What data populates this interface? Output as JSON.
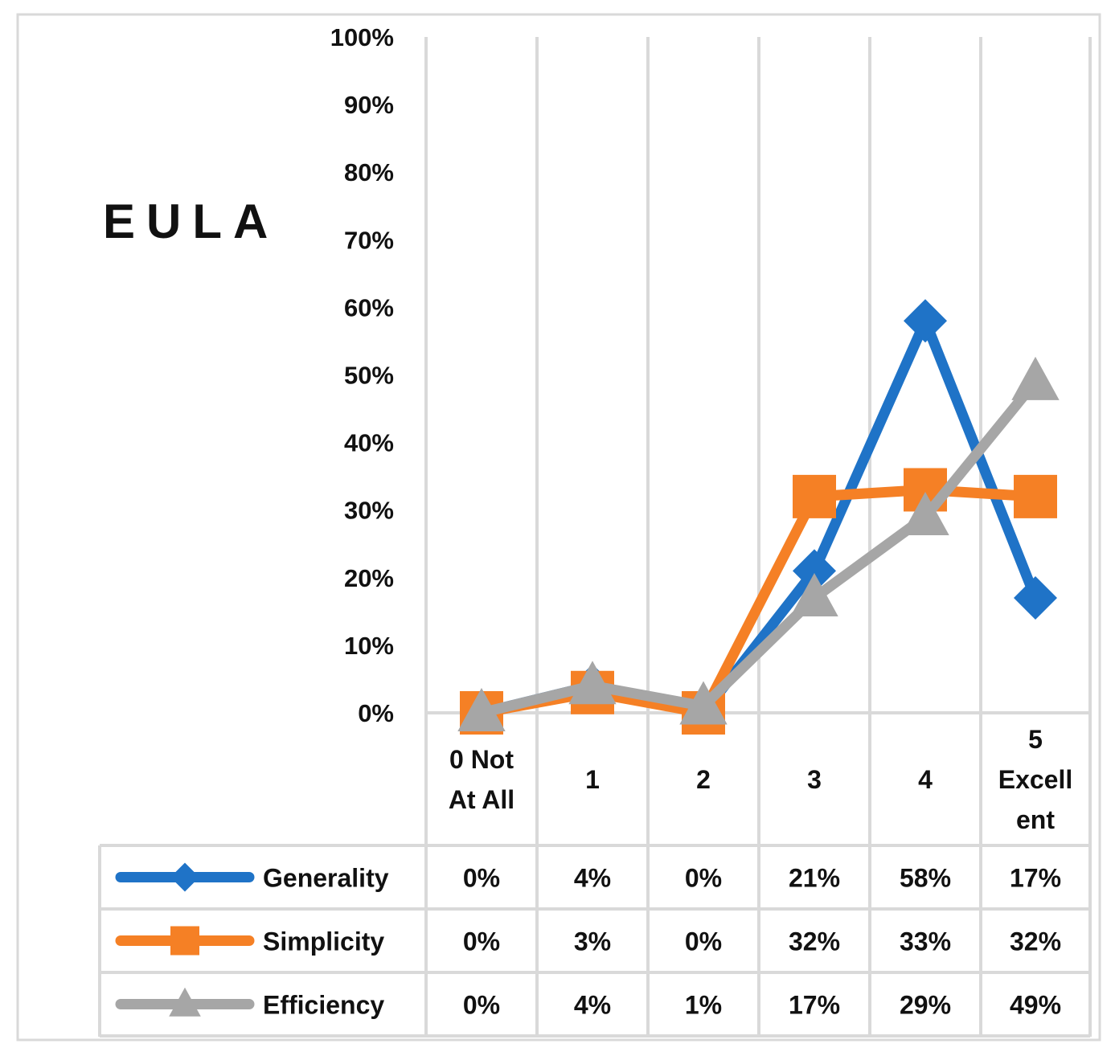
{
  "chart_data": {
    "type": "line",
    "title": "EULA",
    "categories": [
      "0 Not At All",
      "1",
      "2",
      "3",
      "4",
      "5 Excellent"
    ],
    "category_lines": [
      [
        "0 Not",
        "At All"
      ],
      [
        "1"
      ],
      [
        "2"
      ],
      [
        "3"
      ],
      [
        "4"
      ],
      [
        "5",
        "Excell",
        "ent"
      ]
    ],
    "ylim": [
      0,
      100
    ],
    "yticks": [
      "0%",
      "10%",
      "20%",
      "30%",
      "40%",
      "50%",
      "60%",
      "70%",
      "80%",
      "90%",
      "100%"
    ],
    "series": [
      {
        "name": "Generality",
        "color": "#1f73c7",
        "marker": "diamond",
        "values": [
          0,
          4,
          0,
          21,
          58,
          17
        ]
      },
      {
        "name": "Simplicity",
        "color": "#f58025",
        "marker": "square",
        "values": [
          0,
          3,
          0,
          32,
          33,
          32
        ]
      },
      {
        "name": "Efficiency",
        "color": "#a6a6a6",
        "marker": "triangle",
        "values": [
          0,
          4,
          1,
          17,
          29,
          49
        ]
      }
    ],
    "grid": "vertical",
    "legend": "data-table"
  }
}
